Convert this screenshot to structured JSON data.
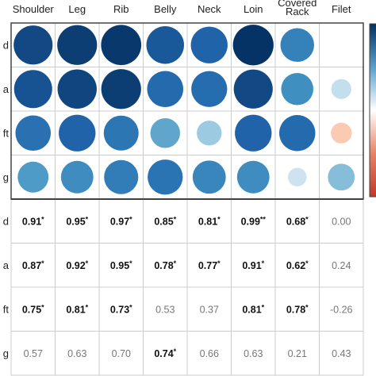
{
  "chart_data": {
    "type": "heatmap",
    "columns": [
      "Shoulder",
      "Leg",
      "Rib",
      "Belly",
      "Neck",
      "Loin",
      "Covered\nRack",
      "Filet"
    ],
    "rows": [
      "d",
      "a",
      "ft",
      "g"
    ],
    "values": [
      [
        0.91,
        0.95,
        0.97,
        0.85,
        0.81,
        0.99,
        0.68,
        0.0
      ],
      [
        0.87,
        0.92,
        0.95,
        0.78,
        0.77,
        0.91,
        0.62,
        0.24
      ],
      [
        0.75,
        0.81,
        0.73,
        0.53,
        0.37,
        0.81,
        0.78,
        -0.26
      ],
      [
        0.57,
        0.63,
        0.7,
        0.74,
        0.66,
        0.63,
        0.21,
        0.43
      ]
    ],
    "labels": [
      [
        "0.91*",
        "0.95*",
        "0.97*",
        "0.85*",
        "0.81*",
        "0.99**",
        "0.68*",
        "0.00"
      ],
      [
        "0.87*",
        "0.92*",
        "0.95*",
        "0.78*",
        "0.77*",
        "0.91*",
        "0.62*",
        "0.24"
      ],
      [
        "0.75*",
        "0.81*",
        "0.73*",
        "0.53",
        "0.37",
        "0.81*",
        "0.78*",
        "-0.26"
      ],
      [
        "0.57",
        "0.63",
        "0.70",
        "0.74*",
        "0.66",
        "0.63",
        "0.21",
        "0.43"
      ]
    ],
    "significant": [
      [
        true,
        true,
        true,
        true,
        true,
        true,
        true,
        false
      ],
      [
        true,
        true,
        true,
        true,
        true,
        true,
        true,
        false
      ],
      [
        true,
        true,
        true,
        false,
        false,
        true,
        true,
        false
      ],
      [
        false,
        false,
        false,
        true,
        false,
        false,
        false,
        false
      ]
    ],
    "colorscale": {
      "negative": "#c0392b",
      "zero": "#ffffff",
      "positive": "#053061"
    },
    "vlim": [
      -1,
      1
    ],
    "grid": true
  }
}
